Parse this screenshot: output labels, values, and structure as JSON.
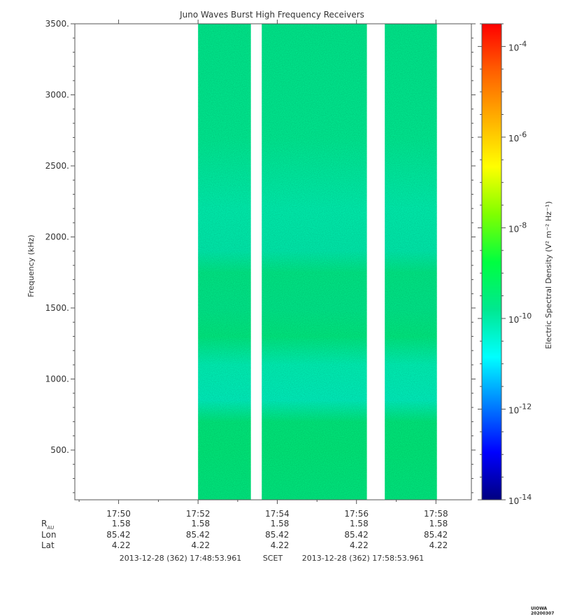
{
  "chart_data": {
    "type": "heatmap",
    "title": "Juno Waves Burst High Frequency Receivers",
    "ylabel": "Frequency (kHz)",
    "ylim": [
      150,
      3500
    ],
    "y_ticks": [
      "3500.",
      "3000.",
      "2500.",
      "2000.",
      "1500.",
      "1000.",
      "500."
    ],
    "y_tick_values": [
      3500,
      3000,
      2500,
      2000,
      1500,
      1000,
      500
    ],
    "x_range_minutes": [
      17.8149,
      17.9816
    ],
    "x_tick_labels": [
      "17:50",
      "17:52",
      "17:54",
      "17:56",
      "17:58"
    ],
    "x_tick_values": [
      17.8333,
      17.8667,
      17.9,
      17.9333,
      17.9667
    ],
    "data_segments_time": [
      [
        17.8667,
        17.8889
      ],
      [
        17.8935,
        17.9377
      ],
      [
        17.9452,
        17.9671
      ]
    ],
    "colorbar": {
      "label": "Electric Spectral Density (V² m⁻² Hz⁻¹)",
      "exponent_range": [
        -14,
        -3.5
      ],
      "tick_exponents": [
        -14,
        -12,
        -10,
        -8,
        -6,
        -4
      ],
      "tick_labels": [
        "10",
        "10",
        "10",
        "10",
        "10",
        "10"
      ],
      "tick_sups": [
        "-14",
        "-12",
        "-10",
        "-8",
        "-6",
        "-4"
      ],
      "colors": [
        "#000080",
        "#0000ff",
        "#0080ff",
        "#00ffff",
        "#00e890",
        "#00ff40",
        "#80ff00",
        "#ffff00",
        "#ffb000",
        "#ff6000",
        "#ff0000"
      ]
    },
    "intensity_profile": [
      {
        "freq": 3500,
        "value": "#00ea8c"
      },
      {
        "freq": 2700,
        "value": "#00ec92"
      },
      {
        "freq": 2200,
        "value": "#00f0ae"
      },
      {
        "freq": 1900,
        "value": "#00ecac"
      },
      {
        "freq": 1750,
        "value": "#00ea86"
      },
      {
        "freq": 1500,
        "value": "#00e98a"
      },
      {
        "freq": 1300,
        "value": "#00eb80"
      },
      {
        "freq": 1100,
        "value": "#00f2b4"
      },
      {
        "freq": 850,
        "value": "#00f0bc"
      },
      {
        "freq": 700,
        "value": "#00ea7c"
      },
      {
        "freq": 500,
        "value": "#00ea7a"
      },
      {
        "freq": 150,
        "value": "#00ea80"
      }
    ],
    "ephemeris": {
      "row_labels": [
        "R",
        "Lon",
        "Lat"
      ],
      "r_sub": "AU",
      "rows": [
        [
          "1.58",
          "1.58",
          "1.58",
          "1.58",
          "1.58"
        ],
        [
          "85.42",
          "85.42",
          "85.42",
          "85.42",
          "85.42"
        ],
        [
          "4.22",
          "4.22",
          "4.22",
          "4.22",
          "4.22"
        ]
      ]
    },
    "time_start": "2013-12-28 (362) 17:48:53.961",
    "time_label": "SCET",
    "time_end": "2013-12-28 (362) 17:58:53.961"
  },
  "footer": "UIOWA 20200307"
}
